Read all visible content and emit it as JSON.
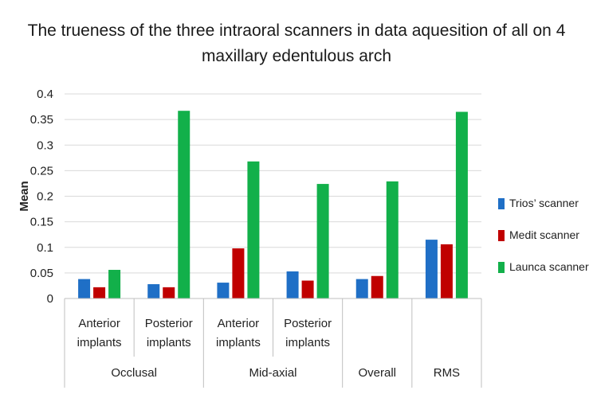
{
  "chart_data": {
    "type": "bar",
    "title_lines": [
      "The trueness of the three intraoral scanners in data aquesition of all on 4",
      "maxillary edentulous arch"
    ],
    "ylabel": "Mean",
    "ylim": [
      0,
      0.4
    ],
    "yticks": [
      "0",
      "0.05",
      "0.1",
      "0.15",
      "0.2",
      "0.25",
      "0.3",
      "0.35",
      "0.4"
    ],
    "grid": true,
    "legend_position": "right",
    "categories": [
      {
        "lines": [
          "Anterior",
          "implants"
        ],
        "group": "Occlusal"
      },
      {
        "lines": [
          "Posterior",
          "implants"
        ],
        "group": "Occlusal"
      },
      {
        "lines": [
          "Anterior",
          "implants"
        ],
        "group": "Mid-axial"
      },
      {
        "lines": [
          "Posterior",
          "implants"
        ],
        "group": "Mid-axial"
      },
      {
        "lines": [],
        "group": "Overall"
      },
      {
        "lines": [],
        "group": "RMS"
      }
    ],
    "groups": [
      "Occlusal",
      "Mid-axial",
      "Overall",
      "RMS"
    ],
    "series": [
      {
        "name": "Trios’ scanner",
        "color": "#1f6fc6",
        "values": [
          0.038,
          0.028,
          0.031,
          0.053,
          0.038,
          0.115
        ]
      },
      {
        "name": "Medit scanner",
        "color": "#c00000",
        "values": [
          0.022,
          0.022,
          0.098,
          0.035,
          0.044,
          0.106
        ]
      },
      {
        "name": "Launca scanner",
        "color": "#12b04a",
        "values": [
          0.056,
          0.367,
          0.268,
          0.224,
          0.229,
          0.365
        ]
      }
    ]
  }
}
